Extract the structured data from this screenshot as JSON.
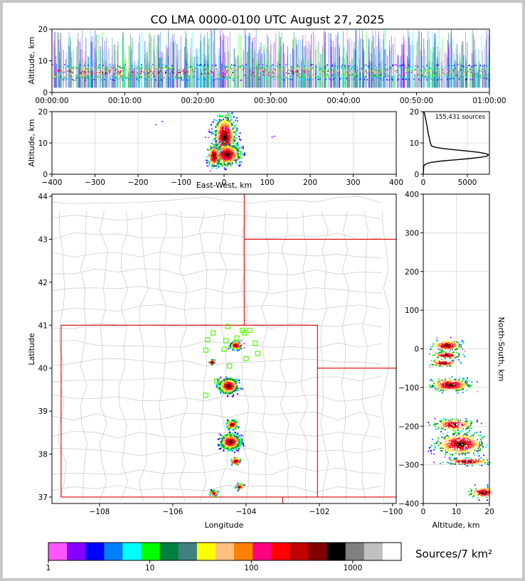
{
  "title": "CO LMA 0000-0100 UTC August 27, 2025",
  "chart_data": [
    {
      "name": "altitude-time",
      "type": "scatter",
      "xlabel": "",
      "ylabel": "Altitude, km",
      "xticks": [
        "00:00:00",
        "00:10:00",
        "00:20:00",
        "00:30:00",
        "00:40:00",
        "00:50:00",
        "01:00:00"
      ],
      "xlim": [
        "00:00:00",
        "01:00:00"
      ],
      "ylim": [
        0,
        20
      ],
      "yticks": [
        0,
        10,
        20
      ],
      "main_layer_km": [
        4,
        9
      ],
      "grid": false
    },
    {
      "name": "altitude-eastwest",
      "type": "heatmap",
      "xlabel": "East-West, km",
      "ylabel": "Altitude, km",
      "xlim": [
        -400,
        400
      ],
      "xticks": [
        -400,
        -300,
        -200,
        -100,
        0,
        100,
        200,
        300,
        400
      ],
      "ylim": [
        0,
        20
      ],
      "yticks": [
        0,
        10,
        20
      ],
      "grid": true
    },
    {
      "name": "altitude-histogram",
      "type": "line",
      "annotation": "155,431 sources",
      "xticks": [
        0,
        5000
      ],
      "xlim": [
        0,
        7500
      ],
      "ylim": [
        0,
        20
      ],
      "yticks": [
        0,
        10,
        20
      ],
      "x": [
        0,
        50,
        150,
        400,
        900,
        2000,
        3600,
        5200,
        6500,
        7200,
        7400,
        7100,
        6300,
        5000,
        3600,
        2300,
        1400,
        950,
        800,
        720,
        650,
        560,
        500,
        450,
        380,
        250,
        80
      ],
      "y": [
        0,
        2.5,
        3.0,
        3.4,
        3.8,
        4.2,
        4.6,
        5.0,
        5.4,
        5.8,
        6.2,
        6.6,
        7.0,
        7.4,
        7.8,
        8.2,
        8.6,
        9.0,
        10.0,
        11.0,
        12.0,
        13.0,
        14.0,
        15.0,
        16.0,
        18.0,
        20.0
      ],
      "grid": true
    },
    {
      "name": "plan-view-map",
      "type": "heatmap",
      "xlabel": "Longitude",
      "ylabel": "Latitude",
      "xlim": [
        -109.3,
        -99.9
      ],
      "ylim": [
        36.85,
        44.05
      ],
      "xticks": [
        -108,
        -106,
        -104,
        -102,
        -100
      ],
      "yticks": [
        37,
        38,
        39,
        40,
        41,
        42,
        43,
        44
      ],
      "stations": [
        {
          "lon": -104.5,
          "lat": 40.97
        },
        {
          "lon": -104.9,
          "lat": 40.82
        },
        {
          "lon": -104.05,
          "lat": 40.82
        },
        {
          "lon": -104.1,
          "lat": 40.88
        },
        {
          "lon": -103.9,
          "lat": 40.88
        },
        {
          "lon": -104.25,
          "lat": 40.7
        },
        {
          "lon": -105.05,
          "lat": 40.66
        },
        {
          "lon": -104.55,
          "lat": 40.64
        },
        {
          "lon": -103.75,
          "lat": 40.58
        },
        {
          "lon": -104.6,
          "lat": 40.44
        },
        {
          "lon": -105.1,
          "lat": 40.42
        },
        {
          "lon": -103.68,
          "lat": 40.34
        },
        {
          "lon": -104.0,
          "lat": 40.22
        },
        {
          "lon": -104.45,
          "lat": 40.05
        },
        {
          "lon": -104.8,
          "lat": 39.7
        },
        {
          "lon": -105.1,
          "lat": 39.37
        }
      ],
      "grid": false
    },
    {
      "name": "northsouth-altitude",
      "type": "heatmap",
      "xlabel": "Altitude, km",
      "ylabel": "North-South, km",
      "xlim": [
        0,
        20
      ],
      "xticks": [
        0,
        10,
        20
      ],
      "ylim": [
        -400,
        400
      ],
      "yticks": [
        -400,
        -300,
        -200,
        -100,
        0,
        100,
        200,
        300,
        400
      ],
      "grid": true
    },
    {
      "name": "colorbar",
      "type": "colorbar",
      "label": "Sources/7 km²",
      "scale": "log",
      "lim": [
        1,
        3000
      ],
      "ticks": [
        "1",
        "10",
        "100",
        "1000"
      ],
      "colors": [
        "#ff55ff",
        "#8800ff",
        "#0000ff",
        "#0080ff",
        "#00ffff",
        "#00ff00",
        "#008040",
        "#408080",
        "#ffff00",
        "#ffc080",
        "#ff8000",
        "#ff0080",
        "#ff0000",
        "#c00000",
        "#800000",
        "#000000",
        "#808080",
        "#c0c0c0",
        "#ffffff"
      ]
    }
  ],
  "colors": {
    "axes": "#000000",
    "grid": "#d6d6d6",
    "map_county": "#c8c8c8",
    "map_state": "#e00000",
    "station": "#55ff00"
  }
}
